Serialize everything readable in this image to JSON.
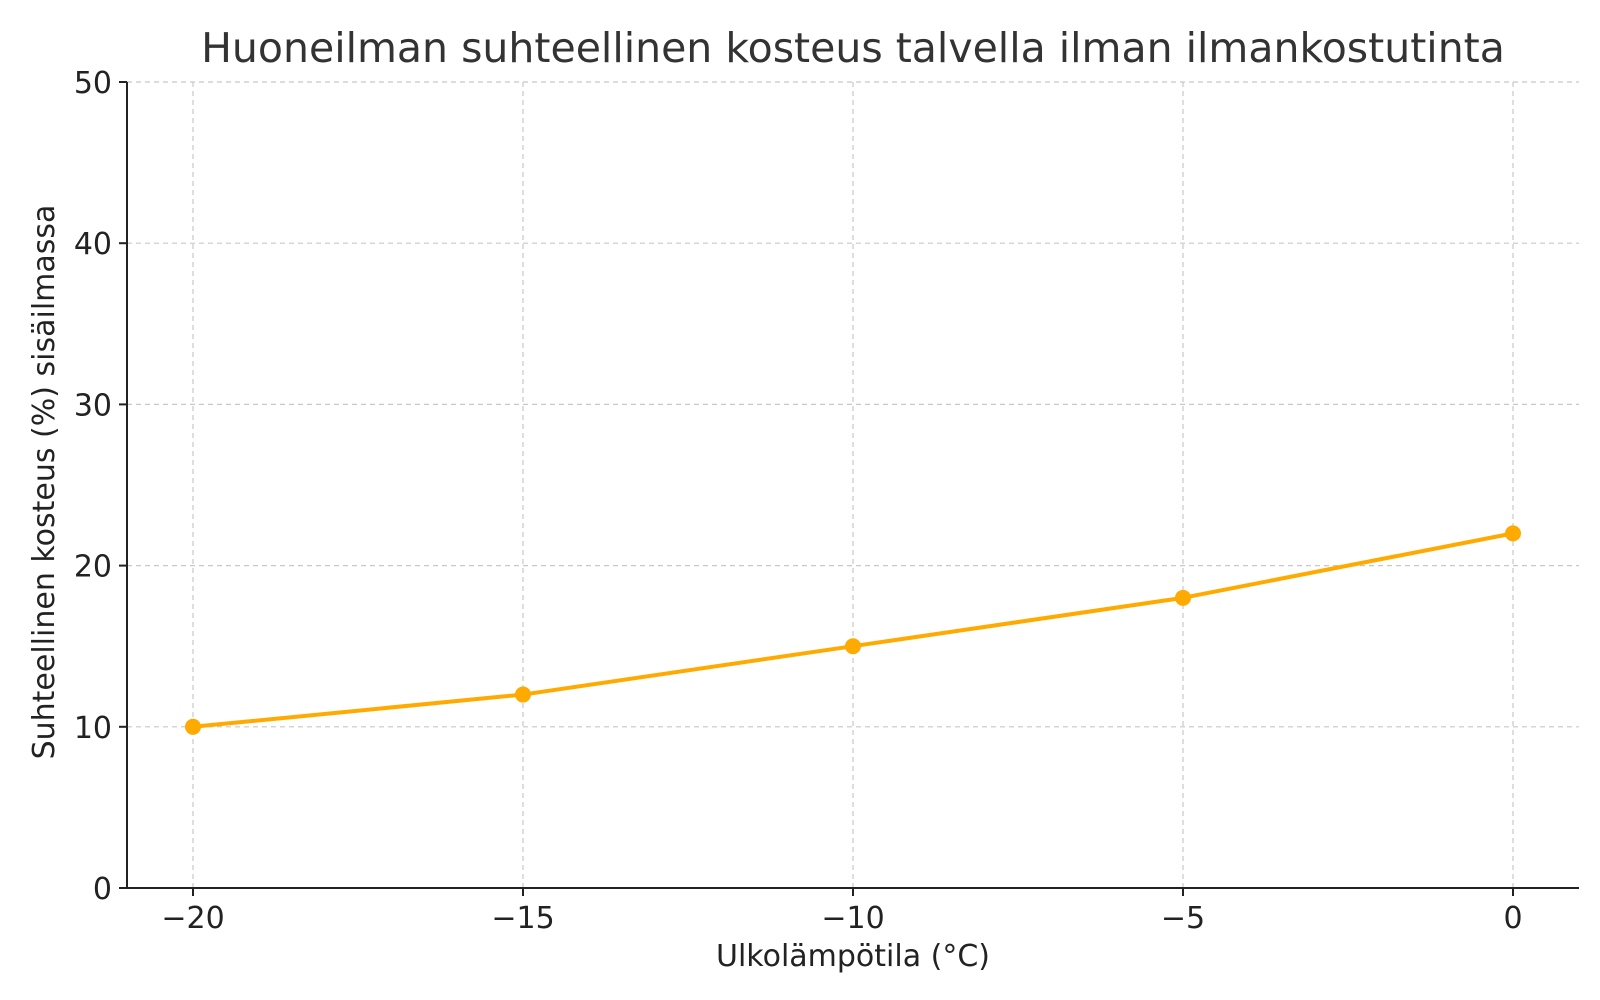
{
  "chart_data": {
    "type": "line",
    "title": "Huoneilman suhteellinen kosteus talvella ilman ilmankostutinta",
    "xlabel": "Ulkolämpötila (°C)",
    "ylabel": "Suhteellinen kosteus (%) sisäilmassa",
    "x": [
      -20,
      -15,
      -10,
      -5,
      0
    ],
    "series": [
      {
        "values": [
          10,
          12,
          15,
          18,
          22
        ]
      }
    ],
    "xlim": [
      -21,
      1
    ],
    "ylim": [
      0,
      50
    ],
    "xticks": [
      -20,
      -15,
      -10,
      -5,
      0
    ],
    "xtick_labels": [
      "−20",
      "−15",
      "−10",
      "−5",
      "0"
    ],
    "yticks": [
      0,
      10,
      20,
      30,
      40,
      50
    ],
    "ytick_labels": [
      "0",
      "10",
      "20",
      "30",
      "40",
      "50"
    ],
    "grid": true,
    "line_color": "#FFAA00",
    "marker": "circle"
  }
}
